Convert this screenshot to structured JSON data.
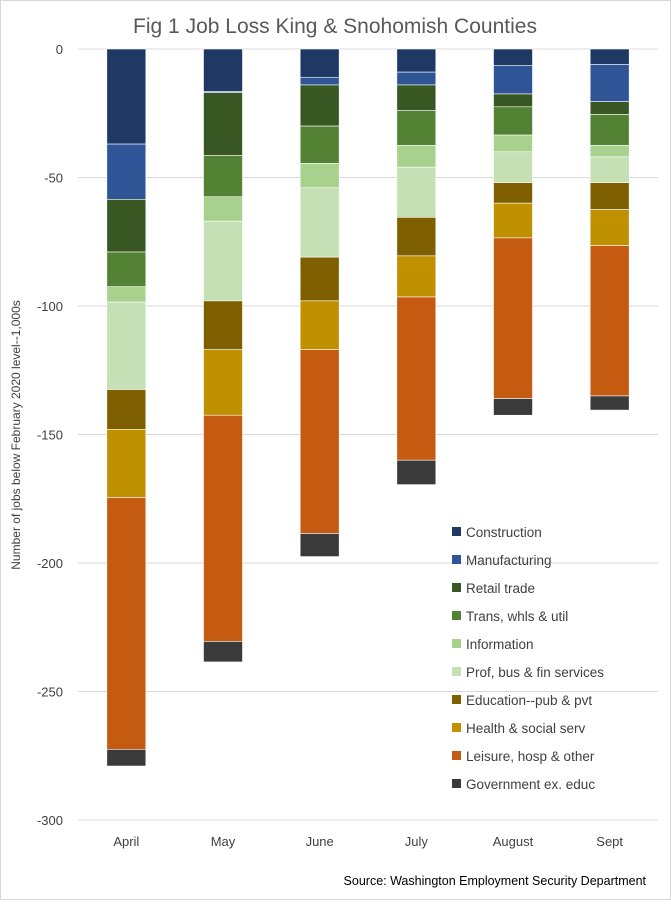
{
  "chart_data": {
    "type": "bar",
    "stacked": true,
    "title": "Fig 1 Job Loss King & Snohomish Counties",
    "ylabel": "Number of jobs below February 2020 level--1,000s",
    "xlabel": "",
    "source": "Source: Washington Employment Security Department",
    "categories": [
      "April",
      "May",
      "June",
      "July",
      "August",
      "Sept"
    ],
    "ylim": [
      -300,
      0
    ],
    "yticks": [
      0,
      -50,
      -100,
      -150,
      -200,
      -250,
      -300
    ],
    "gridlines": true,
    "legend_position": "bottom-right",
    "series": [
      {
        "name": "Construction",
        "color": "#203864",
        "values": [
          -37,
          -16.5,
          -11,
          -9,
          -6.5,
          -6
        ]
      },
      {
        "name": "Manufacturing",
        "color": "#2f5597",
        "values": [
          -21.5,
          -0.5,
          -3,
          -5,
          -11,
          -14.5
        ]
      },
      {
        "name": "Retail trade",
        "color": "#385723",
        "values": [
          -20.5,
          -24.5,
          -16,
          -10,
          -5,
          -5
        ]
      },
      {
        "name": "Trans, whls & util",
        "color": "#548235",
        "values": [
          -13.5,
          -16,
          -14.5,
          -13.5,
          -11,
          -12
        ]
      },
      {
        "name": "Information",
        "color": "#a9d18e",
        "values": [
          -6,
          -9.5,
          -9.5,
          -8.5,
          -6.5,
          -4.5
        ]
      },
      {
        "name": "Prof, bus & fin services",
        "color": "#c5e0b4",
        "values": [
          -34,
          -31,
          -27,
          -19.5,
          -12,
          -10
        ]
      },
      {
        "name": "Education--pub & pvt",
        "color": "#7f6000",
        "values": [
          -15.5,
          -19,
          -17,
          -15,
          -8,
          -10.5
        ]
      },
      {
        "name": "Health & social serv",
        "color": "#bf9000",
        "values": [
          -26.5,
          -25.5,
          -19,
          -16,
          -13.5,
          -14
        ]
      },
      {
        "name": "Leisure, hosp & other",
        "color": "#c55a11",
        "values": [
          -98,
          -88,
          -71.5,
          -63.5,
          -62.5,
          -58.5
        ]
      },
      {
        "name": "Government ex. educ",
        "color": "#3a3a3a",
        "values": [
          -6.5,
          -8,
          -9,
          -9.5,
          -6.5,
          -5.5
        ]
      }
    ]
  }
}
